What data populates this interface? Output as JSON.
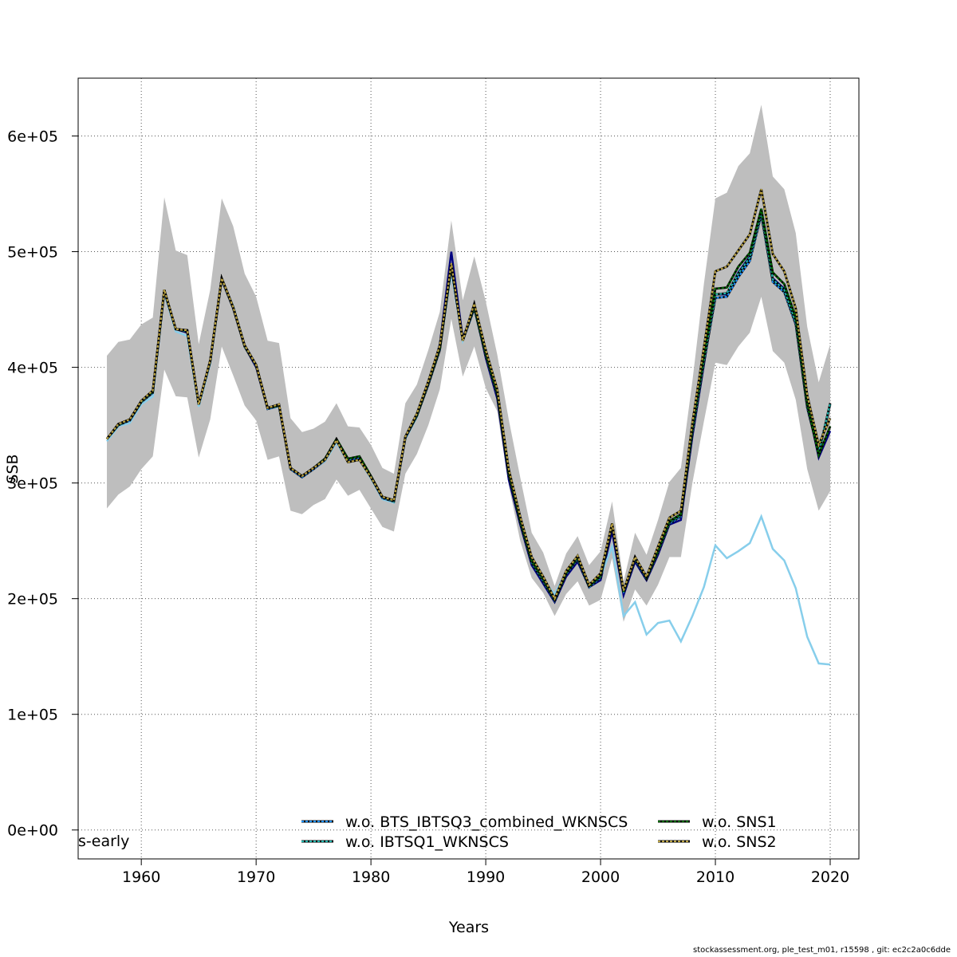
{
  "footer": "stockassessment.org, ple_test_m01, r15598 , git: ec2c2a0c6dde",
  "chart_data": {
    "type": "line",
    "title": "",
    "xlabel": "Years",
    "ylabel": "SSB",
    "xlim": [
      1954.5,
      2022.5
    ],
    "ylim": [
      -25000,
      650000
    ],
    "xticks": [
      1960,
      1970,
      1980,
      1990,
      2000,
      2010,
      2020
    ],
    "yticks": [
      0,
      100000,
      200000,
      300000,
      400000,
      500000,
      600000
    ],
    "ytick_labels": [
      "0e+00",
      "1e+05",
      "2e+05",
      "3e+05",
      "4e+05",
      "5e+05",
      "6e+05"
    ],
    "grid": true,
    "legend_position": "bottom",
    "corner_label": "s-early",
    "years": [
      1957,
      1958,
      1959,
      1960,
      1961,
      1962,
      1963,
      1964,
      1965,
      1966,
      1967,
      1968,
      1969,
      1970,
      1971,
      1972,
      1973,
      1974,
      1975,
      1976,
      1977,
      1978,
      1979,
      1980,
      1981,
      1982,
      1983,
      1984,
      1985,
      1986,
      1987,
      1988,
      1989,
      1990,
      1991,
      1992,
      1993,
      1994,
      1995,
      1996,
      1997,
      1998,
      1999,
      2000,
      2001,
      2002,
      2003,
      2004,
      2005,
      2006,
      2007,
      2008,
      2009,
      2010,
      2011,
      2012,
      2013,
      2014,
      2015,
      2016,
      2017,
      2018,
      2019,
      2020
    ],
    "band": {
      "lower": [
        278000,
        290000,
        297000,
        312000,
        323000,
        398000,
        375000,
        374000,
        322000,
        355000,
        418000,
        393000,
        367000,
        354000,
        320000,
        323000,
        276000,
        273000,
        281000,
        286000,
        303000,
        289000,
        294000,
        278000,
        262000,
        258000,
        308000,
        325000,
        350000,
        381000,
        442000,
        392000,
        418000,
        382000,
        362000,
        298000,
        250000,
        218000,
        205000,
        185000,
        204000,
        215000,
        194000,
        199000,
        235000,
        180000,
        208000,
        194000,
        212000,
        236000,
        236000,
        300000,
        353000,
        404000,
        402000,
        418000,
        430000,
        461000,
        414000,
        404000,
        372000,
        312000,
        276000,
        293000
      ],
      "upper": [
        410000,
        422000,
        424000,
        437000,
        443000,
        547000,
        501000,
        497000,
        420000,
        467000,
        546000,
        522000,
        481000,
        461000,
        423000,
        421000,
        356000,
        344000,
        347000,
        353000,
        369000,
        349000,
        348000,
        333000,
        313000,
        308000,
        369000,
        385000,
        415000,
        448000,
        527000,
        458000,
        496000,
        457000,
        411000,
        355000,
        305000,
        257000,
        240000,
        211000,
        239000,
        254000,
        229000,
        241000,
        284000,
        215000,
        257000,
        238000,
        268000,
        301000,
        313000,
        388000,
        472000,
        546000,
        551000,
        574000,
        585000,
        627000,
        565000,
        554000,
        516000,
        435000,
        387000,
        420000
      ]
    },
    "series": [
      {
        "color": "#000080",
        "dashed": false,
        "width": 2.5,
        "values": [
          338000,
          351000,
          354000,
          370000,
          379000,
          466000,
          433000,
          430000,
          368000,
          405000,
          477000,
          451000,
          418000,
          400000,
          364000,
          366000,
          312000,
          305000,
          312000,
          319000,
          337000,
          320000,
          322000,
          305000,
          287000,
          284000,
          339000,
          358000,
          385000,
          420000,
          500000,
          425000,
          452000,
          408000,
          373000,
          303000,
          264000,
          229000,
          213000,
          197000,
          219000,
          232000,
          210000,
          216000,
          258000,
          203000,
          232000,
          216000,
          238000,
          264000,
          268000,
          340000,
          402000,
          463000,
          463000,
          482000,
          496000,
          537000,
          477000,
          468000,
          439000,
          368000,
          322000,
          345000
        ]
      },
      {
        "color": "#87CEEB",
        "dashed": false,
        "width": 2.5,
        "values": [
          336000,
          349000,
          352000,
          368000,
          375000,
          464000,
          431000,
          427000,
          366000,
          403000,
          476000,
          453000,
          419000,
          401000,
          364000,
          366000,
          312000,
          305000,
          312000,
          319000,
          335000,
          318000,
          320000,
          304000,
          286000,
          283000,
          338000,
          357000,
          386000,
          416000,
          482000,
          423000,
          450000,
          410000,
          376000,
          308000,
          270000,
          234000,
          216000,
          204000,
          223000,
          236000,
          212000,
          219000,
          245000,
          185000,
          197000,
          169000,
          179000,
          181000,
          163000,
          185000,
          210000,
          246000,
          235000,
          241000,
          248000,
          271000,
          243000,
          233000,
          209000,
          167000,
          144000,
          143000
        ]
      },
      {
        "color": "#1E90FF",
        "dashed": true,
        "width": 2.2,
        "values": [
          338000,
          350000,
          354000,
          370000,
          378000,
          466000,
          433000,
          431000,
          368000,
          405000,
          476000,
          451000,
          418000,
          401000,
          364000,
          367000,
          312000,
          305000,
          312000,
          320000,
          337000,
          320000,
          322000,
          305000,
          287000,
          284000,
          339000,
          358000,
          385000,
          415000,
          487000,
          423000,
          451000,
          410000,
          376000,
          307000,
          266000,
          231000,
          215000,
          198000,
          221000,
          234000,
          210000,
          218000,
          263000,
          205000,
          234000,
          217000,
          240000,
          265000,
          271000,
          343000,
          404000,
          460000,
          461000,
          478000,
          492000,
          532000,
          474000,
          465000,
          437000,
          365000,
          326000,
          368000
        ]
      },
      {
        "color": "#20B2AA",
        "dashed": true,
        "width": 2.2,
        "values": [
          338000,
          350000,
          355000,
          370000,
          379000,
          466000,
          433000,
          431000,
          368000,
          405000,
          477000,
          452000,
          418000,
          402000,
          365000,
          367000,
          313000,
          306000,
          313000,
          321000,
          338000,
          321000,
          323000,
          306000,
          288000,
          284000,
          340000,
          358000,
          386000,
          416000,
          487000,
          424000,
          452000,
          411000,
          377000,
          308000,
          267000,
          232000,
          216000,
          199000,
          222000,
          235000,
          211000,
          219000,
          264000,
          206000,
          235000,
          218000,
          241000,
          266000,
          272000,
          345000,
          406000,
          463000,
          464000,
          481000,
          495000,
          534000,
          476000,
          467000,
          439000,
          367000,
          326000,
          369000
        ]
      },
      {
        "color": "#006400",
        "dashed": true,
        "width": 2.2,
        "values": [
          338000,
          351000,
          355000,
          371000,
          379000,
          467000,
          433000,
          432000,
          368000,
          406000,
          477000,
          452000,
          419000,
          402000,
          365000,
          367000,
          313000,
          306000,
          313000,
          321000,
          338000,
          321000,
          323000,
          306000,
          288000,
          285000,
          340000,
          359000,
          387000,
          417000,
          488000,
          424000,
          453000,
          412000,
          378000,
          309000,
          268000,
          233000,
          217000,
          199000,
          222000,
          236000,
          211000,
          220000,
          265000,
          206000,
          236000,
          218000,
          242000,
          267000,
          273000,
          348000,
          410000,
          468000,
          469000,
          487000,
          499000,
          537000,
          482000,
          472000,
          443000,
          369000,
          324000,
          349000
        ]
      },
      {
        "color": "#B8A040",
        "dashed": true,
        "width": 2.2,
        "values": [
          338000,
          351000,
          355000,
          371000,
          380000,
          467000,
          433000,
          432000,
          368000,
          406000,
          477000,
          452000,
          419000,
          402000,
          365000,
          368000,
          313000,
          306000,
          313000,
          320000,
          337000,
          318000,
          320000,
          305000,
          288000,
          285000,
          340000,
          360000,
          388000,
          419000,
          490000,
          423000,
          455000,
          415000,
          381000,
          312000,
          271000,
          236000,
          219000,
          200000,
          224000,
          237000,
          212000,
          222000,
          265000,
          207000,
          236000,
          219000,
          245000,
          270000,
          276000,
          352000,
          417000,
          483000,
          487000,
          501000,
          515000,
          554000,
          498000,
          483000,
          451000,
          376000,
          333000,
          356000
        ]
      }
    ],
    "legend": [
      {
        "label": "w.o. BTS_IBTSQ3_combined_WKNSCS",
        "color": "#1E90FF"
      },
      {
        "label": "w.o. IBTSQ1_WKNSCS",
        "color": "#20B2AA"
      },
      {
        "label": "w.o. SNS1",
        "color": "#006400"
      },
      {
        "label": "w.o. SNS2",
        "color": "#B8A040"
      }
    ]
  }
}
